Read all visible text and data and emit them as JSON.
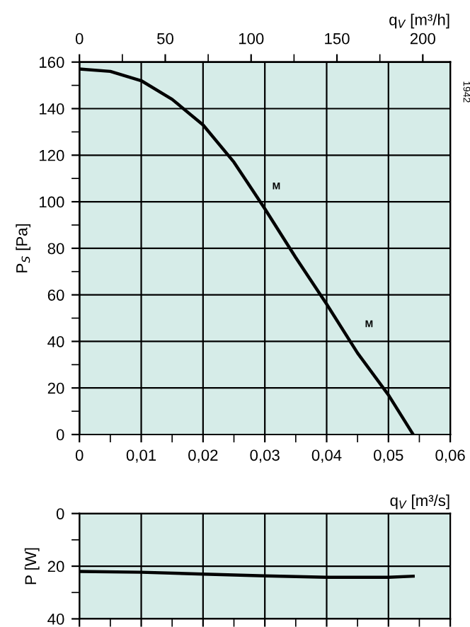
{
  "chart_data": [
    {
      "type": "line",
      "ylabel": "P$_{S}$ [Pa]",
      "x2label": "q$_{V}$ [m³/h]",
      "x": [
        0,
        0.005,
        0.01,
        0.015,
        0.02,
        0.025,
        0.03,
        0.035,
        0.04,
        0.045,
        0.05,
        0.054
      ],
      "series": [
        {
          "color": "#000000",
          "values": [
            157,
            156,
            152,
            144,
            133,
            117,
            97,
            76,
            56,
            35,
            17,
            0
          ]
        }
      ],
      "xlim": [
        0,
        0.06
      ],
      "xticks": [
        0,
        {
          "value": 0.01,
          "label": "0,01"
        },
        {
          "value": 0.02,
          "label": "0,02"
        },
        {
          "value": 0.03,
          "label": "0,03"
        },
        {
          "value": 0.04,
          "label": "0,04"
        },
        {
          "value": 0.05,
          "label": "0,05"
        },
        {
          "value": 0.06,
          "label": "0,06"
        }
      ],
      "ylim": [
        0,
        160
      ],
      "yticks": [
        0,
        20,
        40,
        60,
        80,
        100,
        120,
        140,
        160
      ],
      "x2lim": [
        0,
        216
      ],
      "x2ticks": [
        0,
        50,
        100,
        150,
        200
      ],
      "grid": true,
      "marker": "none",
      "line_style": "solid",
      "annotations": [
        "M",
        "M",
        "1942"
      ]
    },
    {
      "type": "line",
      "xlabel": "q$_{V}$ [m³/s]",
      "ylabel": "P [W]",
      "x": [
        0,
        0.01,
        0.02,
        0.03,
        0.04,
        0.05,
        0.054
      ],
      "series": [
        {
          "color": "#000000",
          "values": [
            22,
            22.3,
            23,
            23.7,
            24.2,
            24.2,
            23.8
          ]
        }
      ],
      "xlim": [
        0,
        0.06
      ],
      "xticks": [
        0,
        0.01,
        0.02,
        0.03,
        0.04,
        0.05,
        0.06
      ],
      "ylim": [
        40,
        0
      ],
      "yticks": [
        0,
        20,
        40
      ],
      "tick_labels": "y",
      "grid": true,
      "marker": "none",
      "line_style": "solid"
    }
  ]
}
